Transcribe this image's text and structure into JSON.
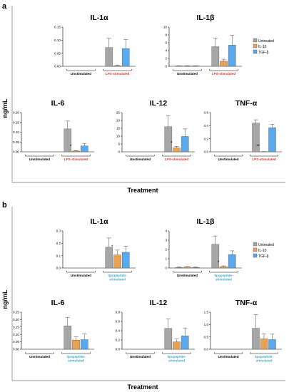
{
  "figure": {
    "y_title": "ng/mL",
    "x_title": "Treatment",
    "colors": {
      "untreated": "#a6a6a6",
      "il10": "#e8a254",
      "tgfb": "#59a9ee"
    },
    "legend": [
      "Untreated",
      "IL-10",
      "TGF-β"
    ]
  },
  "panels": [
    {
      "letter": "a",
      "stim_color": "#e8302a"
    },
    {
      "letter": "b",
      "stim_color": "#3fa9c7"
    }
  ],
  "chart_data": [
    {
      "type": "bar",
      "panel": "a",
      "title": "IL-1α",
      "ylim": [
        0,
        0.15
      ],
      "yticks": [
        "0.00",
        "0.05",
        "0.10",
        "0.15"
      ],
      "groups": [
        "Unstimulated",
        "LPS-stimulated"
      ],
      "series": [
        {
          "name": "Untreated",
          "values": [
            0,
            0.072
          ],
          "errors": [
            0,
            0.035
          ]
        },
        {
          "name": "IL-10",
          "values": [
            0,
            0.002
          ],
          "errors": [
            0,
            0.002
          ]
        },
        {
          "name": "TGF-β",
          "values": [
            0,
            0.068
          ],
          "errors": [
            0,
            0.034
          ]
        }
      ],
      "annotations": []
    },
    {
      "type": "bar",
      "panel": "a",
      "title": "IL-1β",
      "ylim": [
        0,
        10
      ],
      "yticks": [
        "0",
        "2",
        "4",
        "6",
        "8",
        "10"
      ],
      "groups": [
        "Unstimulated",
        "LPS-stimulated"
      ],
      "series": [
        {
          "name": "Untreated",
          "values": [
            0.1,
            5.0
          ],
          "errors": [
            0.05,
            2.2
          ]
        },
        {
          "name": "IL-10",
          "values": [
            0.1,
            1.3
          ],
          "errors": [
            0.05,
            0.5
          ]
        },
        {
          "name": "TGF-β",
          "values": [
            0.1,
            5.4
          ],
          "errors": [
            0.05,
            2.5
          ]
        }
      ],
      "annotations": []
    },
    {
      "type": "bar",
      "panel": "a",
      "title": "IL-6",
      "ylim": [
        0,
        0.2
      ],
      "yticks": [
        "0.00",
        "0.05",
        "0.10",
        "0.15",
        "0.20"
      ],
      "groups": [
        "Unstimulated",
        "LPS-stimulated"
      ],
      "series": [
        {
          "name": "Untreated",
          "values": [
            0,
            0.117
          ],
          "errors": [
            0,
            0.04
          ]
        },
        {
          "name": "IL-10",
          "values": [
            0,
            0.004
          ],
          "errors": [
            0,
            0.002
          ]
        },
        {
          "name": "TGF-β",
          "values": [
            0,
            0.03
          ],
          "errors": [
            0,
            0.013
          ]
        }
      ],
      "annotations": [
        {
          "text": "*",
          "group": 1,
          "series": 1
        }
      ]
    },
    {
      "type": "bar",
      "panel": "a",
      "title": "IL-12",
      "ylim": [
        0,
        25
      ],
      "yticks": [
        "0",
        "5",
        "10",
        "15",
        "20",
        "25"
      ],
      "groups": [
        "Unstimulated",
        "LPS-stimulated"
      ],
      "series": [
        {
          "name": "Untreated",
          "values": [
            0,
            16.0
          ],
          "errors": [
            0,
            7.0
          ]
        },
        {
          "name": "IL-10",
          "values": [
            0,
            2.5
          ],
          "errors": [
            0,
            1.0
          ]
        },
        {
          "name": "TGF-β",
          "values": [
            0,
            9.8
          ],
          "errors": [
            0,
            4.8
          ]
        }
      ],
      "annotations": [
        {
          "text": "*",
          "group": 1,
          "series": 1
        }
      ]
    },
    {
      "type": "bar",
      "panel": "a",
      "title": "TNF-α",
      "ylim": [
        0,
        0.6
      ],
      "yticks": [
        "0.0",
        "0.2",
        "0.4",
        "0.6"
      ],
      "groups": [
        "Unstimulated",
        "LPS-stimulated"
      ],
      "series": [
        {
          "name": "Untreated",
          "values": [
            0,
            0.44
          ],
          "errors": [
            0,
            0.05
          ]
        },
        {
          "name": "IL-10",
          "values": [
            0,
            0.002
          ],
          "errors": [
            0,
            0.002
          ]
        },
        {
          "name": "TGF-β",
          "values": [
            0,
            0.37
          ],
          "errors": [
            0,
            0.05
          ]
        }
      ],
      "annotations": [
        {
          "text": "**",
          "group": 1,
          "series": 1
        }
      ]
    },
    {
      "type": "bar",
      "panel": "b",
      "title": "IL-1α",
      "ylim": [
        0,
        0.3
      ],
      "yticks": [
        "0.0",
        "0.1",
        "0.2",
        "0.3"
      ],
      "groups": [
        "Unstimulated",
        "lipopeptide-\nstimulated"
      ],
      "series": [
        {
          "name": "Untreated",
          "values": [
            0,
            0.168
          ],
          "errors": [
            0,
            0.075
          ]
        },
        {
          "name": "IL-10",
          "values": [
            0,
            0.105
          ],
          "errors": [
            0,
            0.04
          ]
        },
        {
          "name": "TGF-β",
          "values": [
            0,
            0.127
          ],
          "errors": [
            0,
            0.05
          ]
        }
      ],
      "annotations": [
        {
          "text": "*",
          "group": 1,
          "series": 1
        }
      ]
    },
    {
      "type": "bar",
      "panel": "b",
      "title": "IL-1β",
      "ylim": [
        0,
        4
      ],
      "yticks": [
        "0",
        "1",
        "2",
        "3",
        "4"
      ],
      "groups": [
        "Unstimulated",
        "lipopeptide-\nstimulated"
      ],
      "series": [
        {
          "name": "Untreated",
          "values": [
            0.05,
            2.55
          ],
          "errors": [
            0.05,
            0.9
          ]
        },
        {
          "name": "IL-10",
          "values": [
            0.1,
            0.15
          ],
          "errors": [
            0.05,
            0.08
          ]
        },
        {
          "name": "TGF-β",
          "values": [
            0.05,
            1.45
          ],
          "errors": [
            0.05,
            0.4
          ]
        }
      ],
      "annotations": [
        {
          "text": "*",
          "group": 1,
          "series": 1
        }
      ]
    },
    {
      "type": "bar",
      "panel": "b",
      "title": "IL-6",
      "ylim": [
        0,
        0.25
      ],
      "yticks": [
        "0.00",
        "0.05",
        "0.10",
        "0.15",
        "0.20",
        "0.25"
      ],
      "groups": [
        "Unstimulated",
        "lipopeptide-\nstimulated"
      ],
      "series": [
        {
          "name": "Untreated",
          "values": [
            0,
            0.158
          ],
          "errors": [
            0,
            0.055
          ]
        },
        {
          "name": "IL-10",
          "values": [
            0,
            0.062
          ],
          "errors": [
            0,
            0.022
          ]
        },
        {
          "name": "TGF-β",
          "values": [
            0,
            0.065
          ],
          "errors": [
            0,
            0.038
          ]
        }
      ],
      "annotations": []
    },
    {
      "type": "bar",
      "panel": "b",
      "title": "IL-12",
      "ylim": [
        0,
        0.8
      ],
      "yticks": [
        "0.0",
        "0.2",
        "0.4",
        "0.6",
        "0.8"
      ],
      "groups": [
        "Unstimulated",
        "lipopeptide-\nstimulated"
      ],
      "series": [
        {
          "name": "Untreated",
          "values": [
            0,
            0.45
          ],
          "errors": [
            0,
            0.2
          ]
        },
        {
          "name": "IL-10",
          "values": [
            0,
            0.16
          ],
          "errors": [
            0,
            0.06
          ]
        },
        {
          "name": "TGF-β",
          "values": [
            0,
            0.29
          ],
          "errors": [
            0,
            0.17
          ]
        }
      ],
      "annotations": []
    },
    {
      "type": "bar",
      "panel": "b",
      "title": "TNF-α",
      "ylim": [
        0,
        1.5
      ],
      "yticks": [
        "0.0",
        "0.5",
        "1.0",
        "1.5"
      ],
      "groups": [
        "Unstimulated",
        "lipopeptide-\nstimulated"
      ],
      "series": [
        {
          "name": "Untreated",
          "values": [
            0,
            0.85
          ],
          "errors": [
            0,
            0.55
          ]
        },
        {
          "name": "IL-10",
          "values": [
            0,
            0.42
          ],
          "errors": [
            0,
            0.2
          ]
        },
        {
          "name": "TGF-β",
          "values": [
            0,
            0.39
          ],
          "errors": [
            0,
            0.22
          ]
        }
      ],
      "annotations": []
    }
  ]
}
